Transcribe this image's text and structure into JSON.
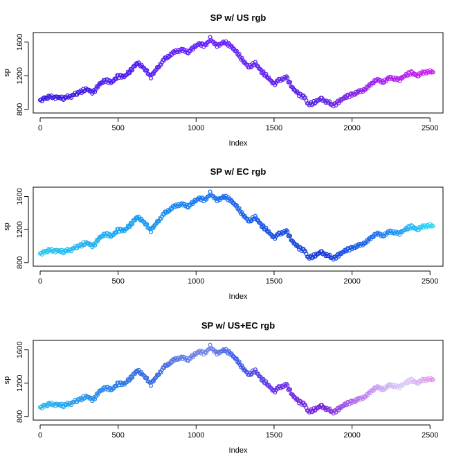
{
  "chart_data": [
    {
      "type": "scatter",
      "title": "SP w/ US rgb",
      "xlabel": "Index",
      "ylabel": "sp",
      "xlim": [
        0,
        2530
      ],
      "ylim": [
        790,
        1680
      ],
      "xticks": [
        0,
        500,
        1000,
        1500,
        2000,
        2500
      ],
      "yticks": [
        800,
        1200,
        1600
      ],
      "color_stops": [
        {
          "at": 0.0,
          "color": "#3a1ae0"
        },
        {
          "at": 0.45,
          "color": "#6a22ff"
        },
        {
          "at": 0.7,
          "color": "#5a28dd"
        },
        {
          "at": 0.85,
          "color": "#a020f0"
        },
        {
          "at": 1.0,
          "color": "#d020f0"
        }
      ],
      "series": [
        {
          "x": [
            0,
            60,
            110,
            150,
            200,
            260,
            300,
            340,
            380,
            420,
            460,
            500,
            540,
            580,
            620,
            650,
            690,
            710,
            750,
            800,
            850,
            900,
            950,
            980,
            1020,
            1060,
            1090,
            1110,
            1140,
            1180,
            1220,
            1260,
            1300,
            1340,
            1380,
            1420,
            1460,
            1500,
            1530,
            1580,
            1620,
            1660,
            1700,
            1720,
            1760,
            1800,
            1850,
            1880,
            1920,
            1960,
            2000,
            2050,
            2100,
            2150,
            2200,
            2250,
            2300,
            2340,
            2380,
            2420,
            2470,
            2520
          ],
          "y": [
            910,
            950,
            945,
            930,
            960,
            1010,
            1040,
            1000,
            1100,
            1150,
            1120,
            1200,
            1190,
            1260,
            1350,
            1320,
            1240,
            1190,
            1290,
            1400,
            1470,
            1510,
            1480,
            1530,
            1580,
            1560,
            1640,
            1590,
            1560,
            1600,
            1560,
            1480,
            1380,
            1300,
            1350,
            1250,
            1180,
            1100,
            1150,
            1180,
            1050,
            980,
            940,
            860,
            880,
            930,
            880,
            850,
            900,
            950,
            980,
            1010,
            1060,
            1150,
            1130,
            1180,
            1150,
            1200,
            1240,
            1200,
            1250,
            1240
          ]
        }
      ]
    },
    {
      "type": "scatter",
      "title": "SP w/ EC rgb",
      "xlabel": "Index",
      "ylabel": "sp",
      "xlim": [
        0,
        2530
      ],
      "ylim": [
        790,
        1680
      ],
      "xticks": [
        0,
        500,
        1000,
        1500,
        2000,
        2500
      ],
      "yticks": [
        800,
        1200,
        1600
      ],
      "color_stops": [
        {
          "at": 0.0,
          "color": "#28c8f0"
        },
        {
          "at": 0.25,
          "color": "#1a9af0"
        },
        {
          "at": 0.45,
          "color": "#1a70f0"
        },
        {
          "at": 0.6,
          "color": "#1a50e0"
        },
        {
          "at": 0.72,
          "color": "#1a3ad8"
        },
        {
          "at": 0.85,
          "color": "#1a70f0"
        },
        {
          "at": 1.0,
          "color": "#28e0f8"
        }
      ],
      "series": [
        {
          "x": [
            0,
            60,
            110,
            150,
            200,
            260,
            300,
            340,
            380,
            420,
            460,
            500,
            540,
            580,
            620,
            650,
            690,
            710,
            750,
            800,
            850,
            900,
            950,
            980,
            1020,
            1060,
            1090,
            1110,
            1140,
            1180,
            1220,
            1260,
            1300,
            1340,
            1380,
            1420,
            1460,
            1500,
            1530,
            1580,
            1620,
            1660,
            1700,
            1720,
            1760,
            1800,
            1850,
            1880,
            1920,
            1960,
            2000,
            2050,
            2100,
            2150,
            2200,
            2250,
            2300,
            2340,
            2380,
            2420,
            2470,
            2520
          ],
          "y": [
            910,
            950,
            945,
            930,
            960,
            1010,
            1040,
            1000,
            1100,
            1150,
            1120,
            1200,
            1190,
            1260,
            1350,
            1320,
            1240,
            1190,
            1290,
            1400,
            1470,
            1510,
            1480,
            1530,
            1580,
            1560,
            1640,
            1590,
            1560,
            1600,
            1560,
            1480,
            1380,
            1300,
            1350,
            1250,
            1180,
            1100,
            1150,
            1180,
            1050,
            980,
            940,
            860,
            880,
            930,
            880,
            850,
            900,
            950,
            980,
            1010,
            1060,
            1150,
            1130,
            1180,
            1150,
            1200,
            1240,
            1200,
            1250,
            1240
          ]
        }
      ]
    },
    {
      "type": "scatter",
      "title": "SP w/ US+EC rgb",
      "xlabel": "Index",
      "ylabel": "sp",
      "xlim": [
        0,
        2530
      ],
      "ylim": [
        790,
        1680
      ],
      "xticks": [
        0,
        500,
        1000,
        1500,
        2000,
        2500
      ],
      "yticks": [
        800,
        1200,
        1600
      ],
      "color_stops": [
        {
          "at": 0.0,
          "color": "#28b8f0"
        },
        {
          "at": 0.2,
          "color": "#2a7ae8"
        },
        {
          "at": 0.3,
          "color": "#3a68e0"
        },
        {
          "at": 0.42,
          "color": "#7a88e8"
        },
        {
          "at": 0.5,
          "color": "#3a5ae8"
        },
        {
          "at": 0.6,
          "color": "#6a30e8"
        },
        {
          "at": 0.72,
          "color": "#7a20d8"
        },
        {
          "at": 0.82,
          "color": "#c080f0"
        },
        {
          "at": 0.92,
          "color": "#d8d0f8"
        },
        {
          "at": 1.0,
          "color": "#e890f0"
        }
      ],
      "series": [
        {
          "x": [
            0,
            60,
            110,
            150,
            200,
            260,
            300,
            340,
            380,
            420,
            460,
            500,
            540,
            580,
            620,
            650,
            690,
            710,
            750,
            800,
            850,
            900,
            950,
            980,
            1020,
            1060,
            1090,
            1110,
            1140,
            1180,
            1220,
            1260,
            1300,
            1340,
            1380,
            1420,
            1460,
            1500,
            1530,
            1580,
            1620,
            1660,
            1700,
            1720,
            1760,
            1800,
            1850,
            1880,
            1920,
            1960,
            2000,
            2050,
            2100,
            2150,
            2200,
            2250,
            2300,
            2340,
            2380,
            2420,
            2470,
            2520
          ],
          "y": [
            910,
            950,
            945,
            930,
            960,
            1010,
            1040,
            1000,
            1100,
            1150,
            1120,
            1200,
            1190,
            1260,
            1350,
            1320,
            1240,
            1190,
            1290,
            1400,
            1470,
            1510,
            1480,
            1530,
            1580,
            1560,
            1640,
            1590,
            1560,
            1600,
            1560,
            1480,
            1380,
            1300,
            1350,
            1250,
            1180,
            1100,
            1150,
            1180,
            1050,
            980,
            940,
            860,
            880,
            930,
            880,
            850,
            900,
            950,
            980,
            1010,
            1060,
            1150,
            1130,
            1180,
            1150,
            1200,
            1240,
            1200,
            1250,
            1240
          ]
        }
      ]
    }
  ]
}
